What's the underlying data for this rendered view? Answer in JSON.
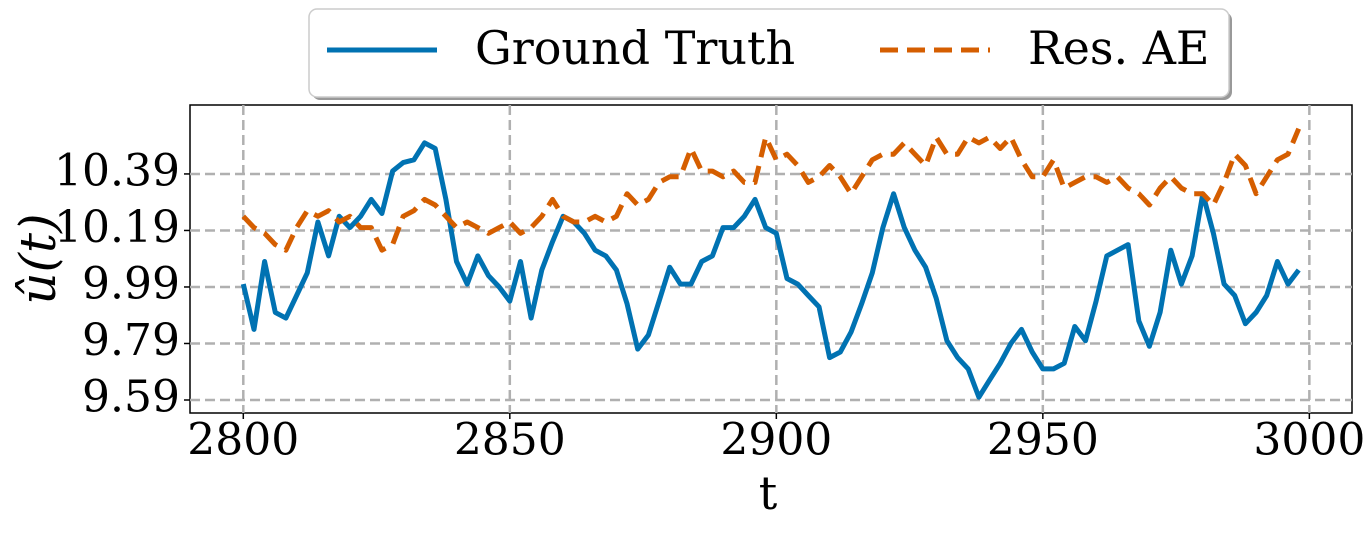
{
  "chart_data": {
    "type": "line",
    "xlabel": "t",
    "ylabel": "û(t)",
    "x": [
      2800,
      2802,
      2804,
      2806,
      2808,
      2810,
      2812,
      2814,
      2816,
      2818,
      2820,
      2822,
      2824,
      2826,
      2828,
      2830,
      2832,
      2834,
      2836,
      2838,
      2840,
      2842,
      2844,
      2846,
      2848,
      2850,
      2852,
      2854,
      2856,
      2858,
      2860,
      2862,
      2864,
      2866,
      2868,
      2870,
      2872,
      2874,
      2876,
      2878,
      2880,
      2882,
      2884,
      2886,
      2888,
      2890,
      2892,
      2894,
      2896,
      2898,
      2900,
      2902,
      2904,
      2906,
      2908,
      2910,
      2912,
      2914,
      2916,
      2918,
      2920,
      2922,
      2924,
      2926,
      2928,
      2930,
      2932,
      2934,
      2936,
      2938,
      2940,
      2942,
      2944,
      2946,
      2948,
      2950,
      2952,
      2954,
      2956,
      2958,
      2960,
      2962,
      2964,
      2966,
      2968,
      2970,
      2972,
      2974,
      2976,
      2978,
      2980,
      2982,
      2984,
      2986,
      2988,
      2990,
      2992,
      2994,
      2996,
      2998
    ],
    "series": [
      {
        "name": "Ground Truth",
        "color": "#0072b2",
        "linestyle": "solid",
        "values": [
          10.0,
          9.84,
          10.08,
          9.9,
          9.88,
          9.96,
          10.04,
          10.22,
          10.1,
          10.24,
          10.2,
          10.24,
          10.3,
          10.25,
          10.4,
          10.43,
          10.44,
          10.5,
          10.48,
          10.3,
          10.08,
          10.0,
          10.1,
          10.03,
          9.99,
          9.94,
          10.08,
          9.88,
          10.05,
          10.15,
          10.24,
          10.22,
          10.18,
          10.12,
          10.1,
          10.05,
          9.93,
          9.77,
          9.82,
          9.94,
          10.06,
          10.0,
          10.0,
          10.08,
          10.1,
          10.2,
          10.2,
          10.24,
          10.3,
          10.2,
          10.18,
          10.02,
          10.0,
          9.96,
          9.92,
          9.74,
          9.76,
          9.83,
          9.93,
          10.04,
          10.2,
          10.32,
          10.2,
          10.12,
          10.06,
          9.95,
          9.8,
          9.74,
          9.7,
          9.6,
          9.66,
          9.72,
          9.79,
          9.84,
          9.76,
          9.7,
          9.7,
          9.72,
          9.85,
          9.8,
          9.94,
          10.1,
          10.12,
          10.14,
          9.87,
          9.78,
          9.9,
          10.12,
          10.0,
          10.1,
          10.32,
          10.18,
          10.0,
          9.96,
          9.86,
          9.9,
          9.96,
          10.08,
          10.0,
          10.05
        ]
      },
      {
        "name": "Res. AE",
        "color": "#d55e00",
        "linestyle": "dashed",
        "values": [
          10.24,
          10.2,
          10.18,
          10.14,
          10.12,
          10.2,
          10.26,
          10.24,
          10.26,
          10.22,
          10.24,
          10.2,
          10.2,
          10.12,
          10.14,
          10.24,
          10.26,
          10.3,
          10.28,
          10.24,
          10.2,
          10.22,
          10.2,
          10.18,
          10.2,
          10.22,
          10.18,
          10.2,
          10.24,
          10.3,
          10.24,
          10.22,
          10.22,
          10.24,
          10.22,
          10.24,
          10.32,
          10.28,
          10.3,
          10.36,
          10.38,
          10.38,
          10.48,
          10.4,
          10.4,
          10.38,
          10.4,
          10.36,
          10.36,
          10.52,
          10.44,
          10.46,
          10.42,
          10.36,
          10.38,
          10.42,
          10.38,
          10.32,
          10.38,
          10.44,
          10.46,
          10.46,
          10.5,
          10.46,
          10.42,
          10.52,
          10.46,
          10.46,
          10.52,
          10.5,
          10.52,
          10.48,
          10.52,
          10.44,
          10.38,
          10.38,
          10.44,
          10.34,
          10.36,
          10.38,
          10.38,
          10.36,
          10.38,
          10.34,
          10.32,
          10.28,
          10.34,
          10.38,
          10.34,
          10.32,
          10.32,
          10.28,
          10.36,
          10.46,
          10.42,
          10.32,
          10.38,
          10.44,
          10.46,
          10.55
        ]
      }
    ],
    "xlim": [
      2790,
      3008
    ],
    "xticks": [
      2800,
      2850,
      2900,
      2950,
      3000
    ],
    "ylim": [
      9.544,
      10.634
    ],
    "yticks": [
      9.59,
      9.79,
      9.99,
      10.19,
      10.39
    ],
    "grid": true,
    "legend": "upper center"
  }
}
